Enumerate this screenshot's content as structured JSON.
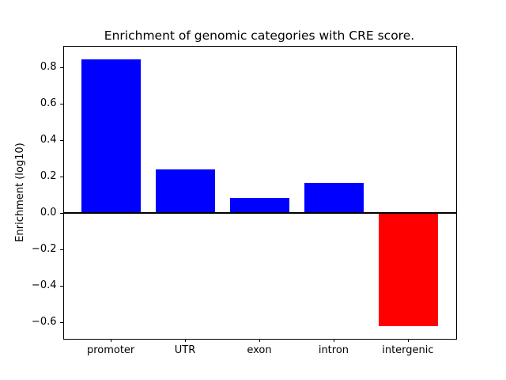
{
  "figure": {
    "title": "Enrichment of genomic categories with CRE score.",
    "ylabel": "Enrichment (log10)",
    "background_color": "#ffffff",
    "axes_color": "#000000"
  },
  "chart_data": {
    "type": "bar",
    "title": "Enrichment of genomic categories with CRE score.",
    "xlabel": "",
    "ylabel": "Enrichment (log10)",
    "categories": [
      "promoter",
      "UTR",
      "exon",
      "intron",
      "intergenic"
    ],
    "values": [
      0.845,
      0.24,
      0.085,
      0.165,
      -0.62
    ],
    "bar_colors": [
      "#0000ff",
      "#0000ff",
      "#0000ff",
      "#0000ff",
      "#ff0000"
    ],
    "positive_color": "#0000ff",
    "negative_color": "#ff0000",
    "bar_width_fraction": 0.8,
    "xlim": [
      -0.64,
      4.64
    ],
    "ylim": [
      -0.687,
      0.916
    ],
    "yticks": [
      0.8,
      0.6,
      0.4,
      0.2,
      0.0,
      -0.2,
      -0.4,
      -0.6
    ],
    "ytick_labels": [
      "0.8",
      "0.6",
      "0.4",
      "0.2",
      "0.0",
      "−0.2",
      "−0.4",
      "−0.6"
    ],
    "zero_line": true,
    "grid": false,
    "legend": null
  }
}
